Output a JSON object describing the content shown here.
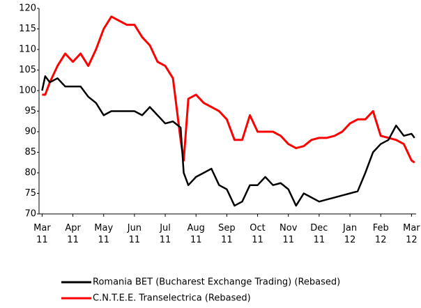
{
  "chart_data": {
    "type": "line",
    "x": [
      0,
      0.1,
      0.25,
      0.5,
      0.75,
      1,
      1.25,
      1.5,
      1.75,
      2,
      2.25,
      2.5,
      2.75,
      3,
      3.25,
      3.5,
      3.75,
      4,
      4.25,
      4.5,
      4.6,
      4.75,
      5,
      5.25,
      5.5,
      5.75,
      6,
      6.25,
      6.5,
      6.75,
      7,
      7.25,
      7.5,
      7.75,
      8,
      8.25,
      8.5,
      8.75,
      9,
      9.25,
      9.5,
      9.75,
      10,
      10.25,
      10.5,
      10.75,
      11,
      11.25,
      11.5,
      11.75,
      12,
      12.1
    ],
    "series": [
      {
        "name": "Romania BET (Bucharest Exchange Trading) (Rebased)",
        "color": "#000000",
        "values": [
          100,
          103.5,
          102,
          103,
          101,
          101,
          101,
          98.5,
          97,
          94,
          95,
          95,
          95,
          95,
          94,
          96,
          94,
          92,
          92.5,
          91,
          80,
          77,
          79,
          80,
          81,
          77,
          76,
          72,
          73,
          77,
          77,
          79,
          77,
          77.5,
          76,
          72,
          75,
          74,
          73,
          73.5,
          74,
          74.5,
          75,
          75.5,
          80,
          85,
          87,
          88,
          91.5,
          89,
          89.5,
          88.5
        ]
      },
      {
        "name": "C.N.T.E.E. Transelectrica (Rebased)",
        "color": "#ff0000",
        "values": [
          99,
          99,
          102,
          106,
          109,
          107,
          109,
          106,
          110,
          115,
          118,
          117,
          116,
          116,
          113,
          111,
          107,
          106,
          103,
          88,
          83,
          98,
          99,
          97,
          96,
          95,
          93,
          88,
          88,
          94,
          90,
          90,
          90,
          89,
          87,
          86,
          86.5,
          88,
          88.5,
          88.5,
          89,
          90,
          92,
          93,
          93,
          95,
          89,
          88.5,
          88,
          87,
          83,
          82.5
        ]
      }
    ],
    "xlim": [
      -0.1,
      12.15
    ],
    "xticks": [
      {
        "value": 0,
        "label": "Mar 11"
      },
      {
        "value": 1,
        "label": "Apr 11"
      },
      {
        "value": 2,
        "label": "May 11"
      },
      {
        "value": 3,
        "label": "Jun 11"
      },
      {
        "value": 4,
        "label": "Jul 11"
      },
      {
        "value": 5,
        "label": "Aug 11"
      },
      {
        "value": 6,
        "label": "Sep 11"
      },
      {
        "value": 7,
        "label": "Oct 11"
      },
      {
        "value": 8,
        "label": "Nov 11"
      },
      {
        "value": 9,
        "label": "Dec 11"
      },
      {
        "value": 10,
        "label": "Jan 12"
      },
      {
        "value": 11,
        "label": "Feb 12"
      },
      {
        "value": 12,
        "label": "Mar 12"
      }
    ],
    "ylim": [
      70,
      120
    ],
    "yticks": [
      70,
      75,
      80,
      85,
      90,
      95,
      100,
      105,
      110,
      115,
      120
    ],
    "grid": false,
    "legend": "bottom"
  }
}
